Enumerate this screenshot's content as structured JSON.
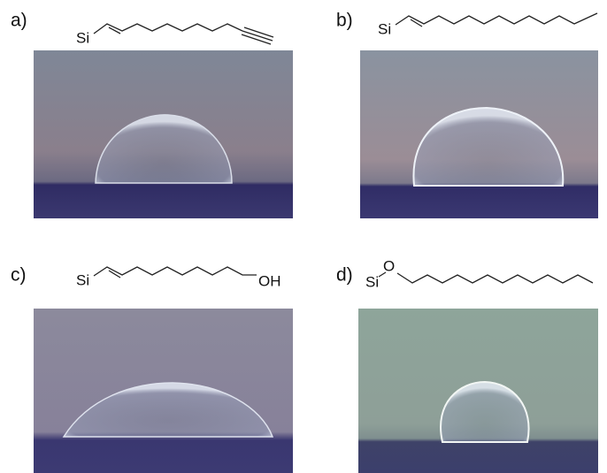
{
  "panels": [
    {
      "label": "a)",
      "atoms": [
        "Si"
      ]
    },
    {
      "label": "b)",
      "atoms": [
        "Si"
      ]
    },
    {
      "label": "c)",
      "atoms": [
        "Si",
        "OH"
      ]
    },
    {
      "label": "d)",
      "atoms": [
        "Si",
        "O"
      ]
    }
  ]
}
